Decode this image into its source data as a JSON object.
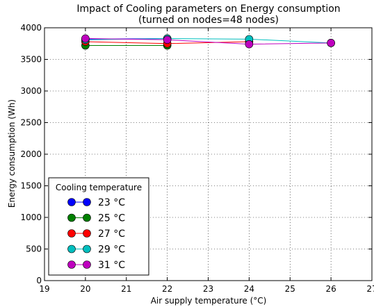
{
  "chart_data": {
    "type": "line",
    "title": "Impact of Cooling parameters on Energy consumption",
    "subtitle": "(turned on nodes=48 nodes)",
    "xlabel": "Air supply temperature (°C)",
    "ylabel": "Energy consumption (Wh)",
    "xlim": [
      19,
      27
    ],
    "ylim": [
      0,
      4000
    ],
    "x_ticks": [
      "19",
      "20",
      "21",
      "22",
      "23",
      "24",
      "25",
      "26",
      "27"
    ],
    "y_ticks": [
      "0",
      "500",
      "1000",
      "1500",
      "2000",
      "2500",
      "3000",
      "3500",
      "4000"
    ],
    "grid": true,
    "legend": {
      "title": "Cooling temperature",
      "placement": "lower-left"
    },
    "series": [
      {
        "name": "23 °C",
        "color": "#0000ff",
        "points": [
          [
            20,
            3820
          ],
          [
            22,
            3830
          ]
        ]
      },
      {
        "name": "25 °C",
        "color": "#008000",
        "points": [
          [
            20,
            3720
          ],
          [
            22,
            3720
          ]
        ]
      },
      {
        "name": "27 °C",
        "color": "#ff0000",
        "points": [
          [
            20,
            3780
          ],
          [
            22,
            3750
          ],
          [
            24,
            3780
          ]
        ]
      },
      {
        "name": "29 °C",
        "color": "#00bfbf",
        "points": [
          [
            20,
            3810
          ],
          [
            22,
            3830
          ],
          [
            24,
            3820
          ],
          [
            26,
            3760
          ]
        ]
      },
      {
        "name": "31 °C",
        "color": "#bf00bf",
        "points": [
          [
            20,
            3830
          ],
          [
            22,
            3810
          ],
          [
            24,
            3740
          ],
          [
            26,
            3760
          ]
        ]
      }
    ]
  }
}
